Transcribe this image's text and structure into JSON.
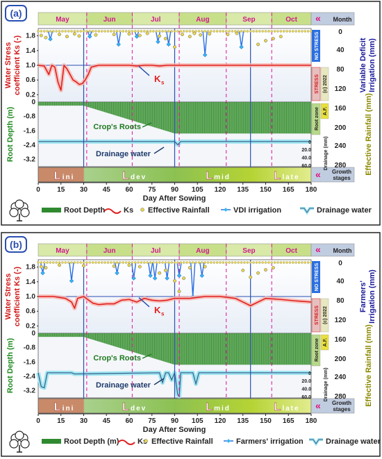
{
  "panels": [
    {
      "id": "a",
      "letter": "(a)",
      "months": [
        "May",
        "Jun",
        "Jul",
        "Aug",
        "Sep",
        "Oct"
      ],
      "month_label": "Month",
      "ylabel_left_top_1": "Water  Stress",
      "ylabel_left_top_2": "coefficient  Ks (-)",
      "ylabel_left_bottom": "Root Depth (m)",
      "ylabel_right_top_1": "Variable Deficit",
      "ylabel_right_top_2": "Irrigation (mm)",
      "ylabel_right_bottom": "Effective Rainfall (mm)",
      "side_labels": {
        "no_stress": "NO STRESS",
        "stress": "STRESS",
        "copyright": "(c) 2022",
        "root_zone": "Root zone",
        "af": "A.F.",
        "drainage": "Drainage (mm)"
      },
      "annotations": {
        "ks": "K",
        "ks_sub": "s",
        "roots": "Crop's Roots",
        "drainage": "Drainage water"
      },
      "stages": [
        {
          "big": "L",
          "small": "ini"
        },
        {
          "big": "L",
          "small": "dev"
        },
        {
          "big": "L",
          "small": "mid"
        },
        {
          "big": "L",
          "small": "late"
        }
      ],
      "growth_label_1": "Growth",
      "growth_label_2": "stages",
      "legend": [
        "Root Depth",
        "Ks",
        "Effective Rainfall",
        "VDI irrigation",
        "Drainage water"
      ]
    },
    {
      "id": "b",
      "letter": "(b)",
      "months": [
        "May",
        "Jun",
        "Jul",
        "Aug",
        "Sep",
        "Oct"
      ],
      "month_label": "Month",
      "ylabel_left_top_1": "Water  Stress",
      "ylabel_left_top_2": "coefficient  Ks (-)",
      "ylabel_left_bottom": "Root Depth (m)",
      "ylabel_right_top_1": "Farmers'",
      "ylabel_right_top_2": "Irrigation (mm)",
      "ylabel_right_bottom": "Effective Rainfall (mm)",
      "side_labels": {
        "no_stress": "NO STRESS",
        "stress": "STRESS",
        "copyright": "(c) 2022",
        "root_zone": "Root zone",
        "af": "A.F.",
        "drainage": "Drainage (mm)"
      },
      "annotations": {
        "ks": "K",
        "ks_sub": "s",
        "roots": "Crop's Roots",
        "drainage": "Drainage water"
      },
      "stages": [
        {
          "big": "L",
          "small": "ini"
        },
        {
          "big": "L",
          "small": "dev"
        },
        {
          "big": "L",
          "small": "mid"
        },
        {
          "big": "L",
          "small": "late"
        }
      ],
      "growth_label_1": "Growth",
      "growth_label_2": "stages",
      "legend": [
        "Root Depth (m)",
        "Ks",
        "Effective Rainfall",
        "Farmers' irrigation",
        "Drainage water"
      ]
    }
  ],
  "chart_data": [
    {
      "type": "line",
      "panel": "a",
      "xlabel": "Day After Sowing",
      "x_ticks": [
        0,
        15,
        30,
        45,
        60,
        75,
        90,
        105,
        120,
        135,
        150,
        165,
        180
      ],
      "xlim": [
        0,
        180
      ],
      "month_boundaries_day": [
        0,
        32,
        62,
        93,
        124,
        154,
        180
      ],
      "stage_boundaries_day": [
        0,
        30,
        90,
        140,
        180
      ],
      "ks_yticks": [
        1.8,
        1.4,
        1.0,
        0.6,
        0.2
      ],
      "ks_ylim": [
        0,
        2.0
      ],
      "root_yticks": [
        0,
        -0.8,
        -1.6,
        -2.4,
        -3.2
      ],
      "root_ylim": [
        -3.6,
        0
      ],
      "irr_yticks": [
        0,
        40,
        80,
        120
      ],
      "rain_yticks": [
        160,
        200,
        240,
        280
      ],
      "drain_yticks": [
        0,
        20,
        40,
        60
      ],
      "series": [
        {
          "name": "Ks",
          "x": [
            0,
            4,
            7,
            9,
            11,
            13,
            15,
            17,
            19,
            21,
            23,
            25,
            27,
            29,
            31,
            33,
            35,
            40,
            50,
            55,
            60,
            65,
            70,
            75,
            80,
            85,
            90,
            95,
            100,
            120,
            140,
            150,
            160,
            170,
            180
          ],
          "values": [
            1.0,
            0.98,
            0.75,
            1.0,
            0.95,
            0.55,
            0.32,
            1.0,
            0.9,
            0.75,
            0.6,
            0.55,
            0.48,
            0.5,
            0.6,
            0.75,
            0.95,
            1.0,
            1.0,
            1.0,
            1.0,
            0.98,
            1.0,
            1.0,
            0.98,
            1.0,
            1.0,
            1.0,
            1.0,
            1.0,
            1.0,
            1.0,
            1.0,
            1.0,
            1.0
          ]
        },
        {
          "name": "VDI irrigation",
          "x": [
            8,
            34,
            53,
            65,
            79,
            86,
            110,
            134
          ],
          "values": [
            15,
            10,
            25,
            10,
            20,
            25,
            45,
            30
          ]
        },
        {
          "name": "Effective Rainfall",
          "x": [
            2,
            5,
            14,
            19,
            24,
            27,
            38,
            50,
            60,
            67,
            72,
            80,
            84,
            90,
            95,
            100,
            103,
            107,
            113,
            125,
            131,
            145,
            150,
            155,
            160
          ],
          "values": [
            8,
            12,
            6,
            10,
            5,
            9,
            7,
            6,
            5,
            8,
            4,
            9,
            14,
            30,
            6,
            10,
            4,
            7,
            5,
            6,
            4,
            25,
            18,
            14,
            10
          ]
        },
        {
          "name": "Root Depth",
          "x": [
            0,
            30,
            90,
            180
          ],
          "values": [
            -0.2,
            -0.2,
            -1.75,
            -1.75
          ]
        },
        {
          "name": "Drainage water",
          "x": [
            0,
            90,
            92,
            94,
            96,
            180
          ],
          "values": [
            0,
            0,
            8,
            0,
            0,
            0
          ]
        }
      ]
    },
    {
      "type": "line",
      "panel": "b",
      "xlabel": "Day After Sowing",
      "x_ticks": [
        0,
        15,
        30,
        45,
        60,
        75,
        90,
        105,
        120,
        135,
        150,
        165,
        180
      ],
      "xlim": [
        0,
        180
      ],
      "month_boundaries_day": [
        0,
        32,
        62,
        93,
        124,
        154,
        180
      ],
      "stage_boundaries_day": [
        0,
        30,
        90,
        140,
        180
      ],
      "ks_yticks": [
        1.8,
        1.4,
        1.0,
        0.6,
        0.2
      ],
      "ks_ylim": [
        0,
        2.0
      ],
      "root_yticks": [
        0,
        -0.8,
        -1.6,
        -2.4,
        -3.2
      ],
      "root_ylim": [
        -3.6,
        0
      ],
      "irr_yticks": [
        0,
        40,
        80,
        120
      ],
      "rain_yticks": [
        160,
        200,
        240,
        280
      ],
      "drain_yticks": [
        0,
        20,
        40,
        60
      ],
      "series": [
        {
          "name": "Ks",
          "x": [
            0,
            10,
            18,
            22,
            24,
            26,
            30,
            36,
            40,
            45,
            50,
            55,
            60,
            65,
            70,
            75,
            80,
            85,
            90,
            100,
            110,
            120,
            130,
            135,
            140,
            150,
            160,
            170,
            180
          ],
          "values": [
            1.0,
            1.0,
            0.95,
            0.85,
            0.68,
            0.95,
            1.0,
            0.82,
            0.78,
            0.8,
            0.8,
            0.9,
            0.92,
            0.85,
            0.95,
            0.9,
            0.88,
            0.9,
            0.95,
            0.95,
            1.0,
            1.0,
            0.95,
            0.85,
            0.75,
            0.95,
            0.92,
            0.88,
            0.85
          ]
        },
        {
          "name": "Farmers' irrigation",
          "x": [
            3,
            22,
            52,
            63,
            74,
            77,
            85,
            93,
            102,
            108
          ],
          "values": [
            20,
            35,
            20,
            30,
            25,
            30,
            30,
            25,
            65,
            25
          ]
        },
        {
          "name": "Effective Rainfall",
          "x": [
            2,
            5,
            14,
            30,
            50,
            60,
            67,
            80,
            84,
            90,
            93,
            96,
            100,
            110,
            135,
            140,
            145,
            150,
            155
          ],
          "values": [
            8,
            10,
            5,
            6,
            7,
            5,
            8,
            20,
            15,
            35,
            55,
            30,
            10,
            8,
            15,
            28,
            20,
            14,
            10
          ]
        },
        {
          "name": "Root Depth (m)",
          "x": [
            0,
            30,
            90,
            180
          ],
          "values": [
            -0.2,
            -0.2,
            -1.75,
            -1.75
          ]
        },
        {
          "name": "Drainage water",
          "x": [
            0,
            2,
            4,
            6,
            8,
            22,
            24,
            80,
            82,
            84,
            86,
            88,
            90,
            92,
            93,
            94,
            102,
            104,
            106,
            180
          ],
          "values": [
            0,
            35,
            38,
            0,
            0,
            0,
            3,
            0,
            25,
            0,
            0,
            18,
            0,
            55,
            60,
            0,
            0,
            28,
            0,
            0
          ]
        }
      ]
    }
  ]
}
